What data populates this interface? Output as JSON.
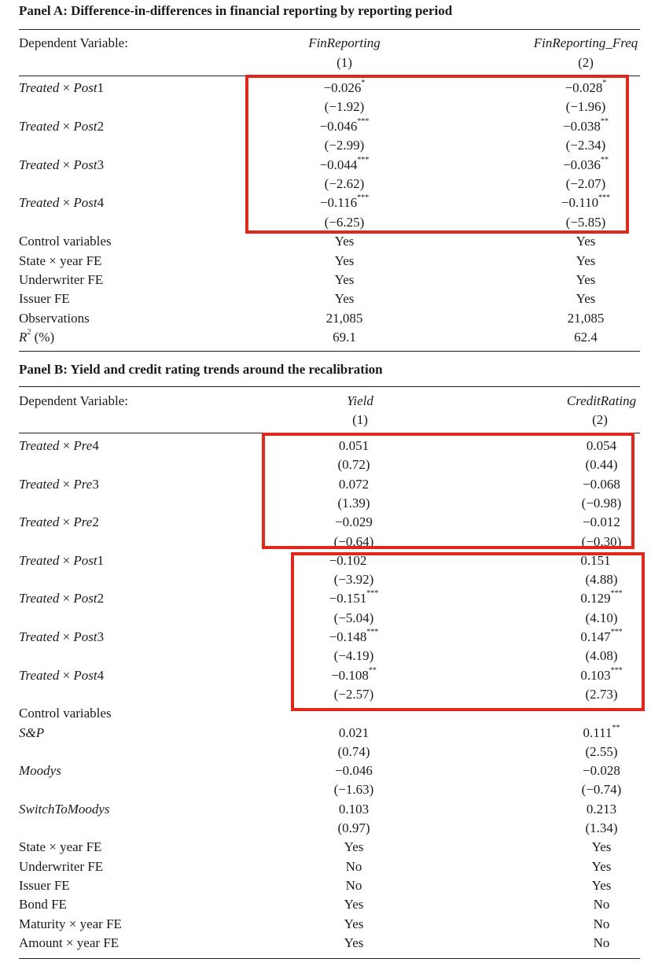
{
  "panel_a": {
    "title": "Panel A: Difference-in-differences in financial reporting by reporting period",
    "header": {
      "label": "Dependent Variable:",
      "col1": "FinReporting",
      "col2": "FinReporting_Freq",
      "num1": "(1)",
      "num2": "(2)"
    },
    "rows": [
      {
        "label": "Treated × Post1",
        "c1": "−0.026",
        "s1": "*",
        "c2": "−0.028",
        "s2": "*"
      },
      {
        "label": "",
        "c1": "(−1.92)",
        "s1": "",
        "c2": "(−1.96)",
        "s2": ""
      },
      {
        "label": "Treated × Post2",
        "c1": "−0.046",
        "s1": "***",
        "c2": "−0.038",
        "s2": "**"
      },
      {
        "label": "",
        "c1": "(−2.99)",
        "s1": "",
        "c2": "(−2.34)",
        "s2": ""
      },
      {
        "label": "Treated × Post3",
        "c1": "−0.044",
        "s1": "***",
        "c2": "−0.036",
        "s2": "**"
      },
      {
        "label": "",
        "c1": "(−2.62)",
        "s1": "",
        "c2": "(−2.07)",
        "s2": ""
      },
      {
        "label": "Treated × Post4",
        "c1": "−0.116",
        "s1": "***",
        "c2": "−0.110",
        "s2": "***"
      },
      {
        "label": "",
        "c1": "(−6.25)",
        "s1": "",
        "c2": "(−5.85)",
        "s2": ""
      },
      {
        "label": "Control variables",
        "c1": "Yes",
        "s1": "",
        "c2": "Yes",
        "s2": ""
      },
      {
        "label": "State × year FE",
        "c1": "Yes",
        "s1": "",
        "c2": "Yes",
        "s2": ""
      },
      {
        "label": "Underwriter FE",
        "c1": "Yes",
        "s1": "",
        "c2": "Yes",
        "s2": ""
      },
      {
        "label": "Issuer FE",
        "c1": "Yes",
        "s1": "",
        "c2": "Yes",
        "s2": ""
      },
      {
        "label": "Observations",
        "c1": "21,085",
        "s1": "",
        "c2": "21,085",
        "s2": ""
      },
      {
        "label": "R² (%)",
        "c1": "69.1",
        "s1": "",
        "c2": "62.4",
        "s2": ""
      }
    ]
  },
  "panel_b": {
    "title": "Panel B: Yield and credit rating trends around the recalibration",
    "header": {
      "label": "Dependent Variable:",
      "col1": "Yield",
      "col2": "CreditRating",
      "num1": "(1)",
      "num2": "(2)"
    },
    "rows": [
      {
        "label": "Treated × Pre4",
        "c1": "0.051",
        "s1": "",
        "c2": "0.054",
        "s2": ""
      },
      {
        "label": "",
        "c1": "(0.72)",
        "s1": "",
        "c2": "(0.44)",
        "s2": ""
      },
      {
        "label": "Treated × Pre3",
        "c1": "0.072",
        "s1": "",
        "c2": "−0.068",
        "s2": ""
      },
      {
        "label": "",
        "c1": "(1.39)",
        "s1": "",
        "c2": "(−0.98)",
        "s2": ""
      },
      {
        "label": "Treated × Pre2",
        "c1": "−0.029",
        "s1": "",
        "c2": "−0.012",
        "s2": ""
      },
      {
        "label": "",
        "c1": "(−0.64)",
        "s1": "",
        "c2": "(−0.30)",
        "s2": ""
      },
      {
        "label": "Treated × Post1",
        "c1": "−0.102",
        "s1": "***",
        "c2": "0.151",
        "s2": "***"
      },
      {
        "label": "",
        "c1": "(−3.92)",
        "s1": "",
        "c2": "(4.88)",
        "s2": ""
      },
      {
        "label": "Treated × Post2",
        "c1": "−0.151",
        "s1": "***",
        "c2": "0.129",
        "s2": "***"
      },
      {
        "label": "",
        "c1": "(−5.04)",
        "s1": "",
        "c2": "(4.10)",
        "s2": ""
      },
      {
        "label": "Treated × Post3",
        "c1": "−0.148",
        "s1": "***",
        "c2": "0.147",
        "s2": "***"
      },
      {
        "label": "",
        "c1": "(−4.19)",
        "s1": "",
        "c2": "(4.08)",
        "s2": ""
      },
      {
        "label": "Treated × Post4",
        "c1": "−0.108",
        "s1": "**",
        "c2": "0.103",
        "s2": "***"
      },
      {
        "label": "",
        "c1": "(−2.57)",
        "s1": "",
        "c2": "(2.73)",
        "s2": ""
      },
      {
        "label": "Control variables",
        "c1": "",
        "s1": "",
        "c2": "",
        "s2": ""
      },
      {
        "label": "S&P",
        "c1": "0.021",
        "s1": "",
        "c2": "0.111",
        "s2": "**"
      },
      {
        "label": "",
        "c1": "(0.74)",
        "s1": "",
        "c2": "(2.55)",
        "s2": ""
      },
      {
        "label": "Moodys",
        "c1": "−0.046",
        "s1": "",
        "c2": "−0.028",
        "s2": ""
      },
      {
        "label": "",
        "c1": "(−1.63)",
        "s1": "",
        "c2": "(−0.74)",
        "s2": ""
      },
      {
        "label": "SwitchToMoodys",
        "c1": "0.103",
        "s1": "",
        "c2": "0.213",
        "s2": ""
      },
      {
        "label": "",
        "c1": "(0.97)",
        "s1": "",
        "c2": "(1.34)",
        "s2": ""
      },
      {
        "label": "State × year FE",
        "c1": "Yes",
        "s1": "",
        "c2": "Yes",
        "s2": ""
      },
      {
        "label": "Underwriter FE",
        "c1": "No",
        "s1": "",
        "c2": "Yes",
        "s2": ""
      },
      {
        "label": "Issuer FE",
        "c1": "No",
        "s1": "",
        "c2": "Yes",
        "s2": ""
      },
      {
        "label": "Bond FE",
        "c1": "Yes",
        "s1": "",
        "c2": "No",
        "s2": ""
      },
      {
        "label": "Maturity × year FE",
        "c1": "Yes",
        "s1": "",
        "c2": "No",
        "s2": ""
      },
      {
        "label": "Amount × year FE",
        "c1": "Yes",
        "s1": "",
        "c2": "No",
        "s2": ""
      }
    ]
  },
  "highlight_color": "#e0271c"
}
